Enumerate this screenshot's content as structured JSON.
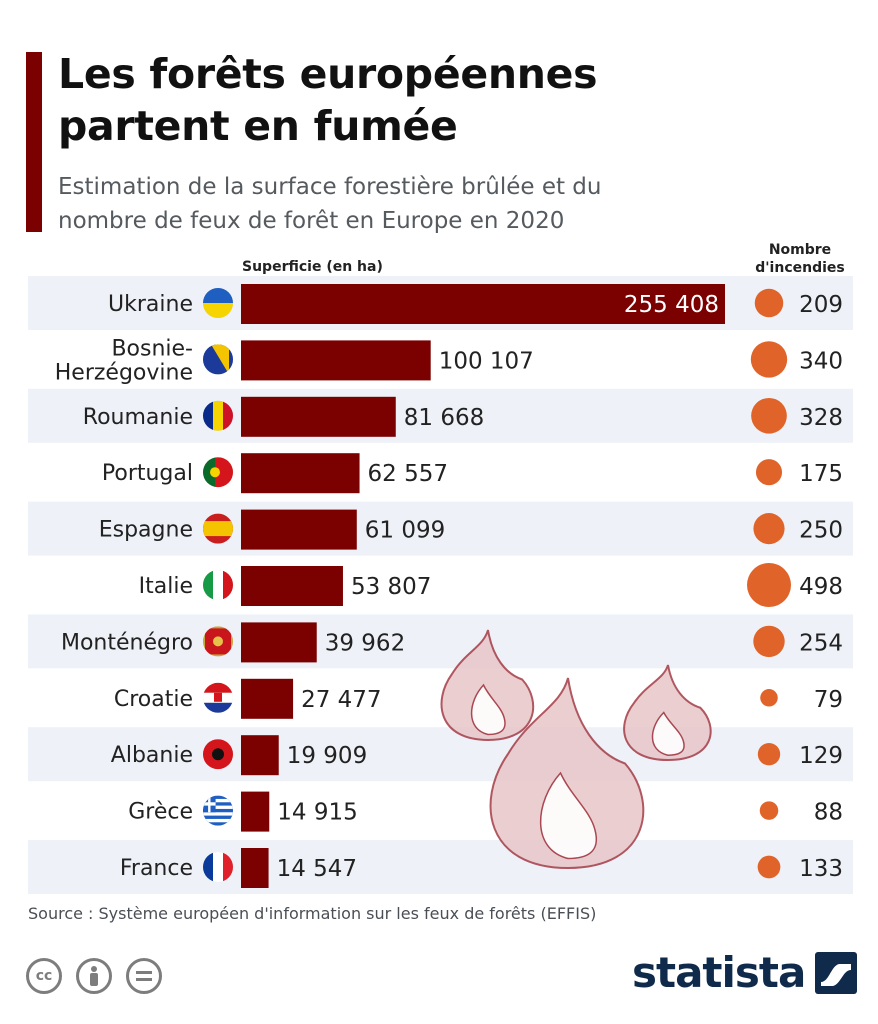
{
  "title": "Les forêts européennes\npartent en fumée",
  "subtitle": "Estimation de la surface forestière brûlée et du\nnombre de feux de forêt en Europe en 2020",
  "colors": {
    "accent": "#7b0000",
    "bar": "#7b0000",
    "bubble": "#e0642a",
    "row_alt": "#eef2f8",
    "flame": "#e8c6c8"
  },
  "chart_data": {
    "type": "bar",
    "orientation": "horizontal",
    "xlabel": "Superficie (en ha)",
    "secondary_label": "Nombre\nd'incendies",
    "categories": [
      "Ukraine",
      "Bosnie-\nHerzégovine",
      "Roumanie",
      "Portugal",
      "Espagne",
      "Italie",
      "Monténégro",
      "Croatie",
      "Albanie",
      "Grèce",
      "France"
    ],
    "flags": [
      "flag-ukraine",
      "flag-bosnia",
      "flag-romania",
      "flag-portugal",
      "flag-spain",
      "flag-italy",
      "flag-montenegro",
      "flag-croatia",
      "flag-albania",
      "flag-greece",
      "flag-france"
    ],
    "series": [
      {
        "name": "Superficie (en ha)",
        "values": [
          255408,
          100107,
          81668,
          62557,
          61099,
          53807,
          39962,
          27477,
          19909,
          14915,
          14547
        ],
        "labels": [
          "255 408",
          "100 107",
          "81 668",
          "62 557",
          "61 099",
          "53 807",
          "39 962",
          "27 477",
          "19 909",
          "14 915",
          "14 547"
        ]
      },
      {
        "name": "Nombre d'incendies",
        "values": [
          209,
          340,
          328,
          175,
          250,
          498,
          254,
          79,
          129,
          88,
          133
        ]
      }
    ],
    "xlim": [
      0,
      255408
    ]
  },
  "footer": {
    "source": "Source : Système européen d'information sur les feux de forêts (EFFIS)",
    "brand": "statista",
    "license_icons": [
      "cc-icon",
      "person-icon",
      "equals-icon"
    ]
  }
}
